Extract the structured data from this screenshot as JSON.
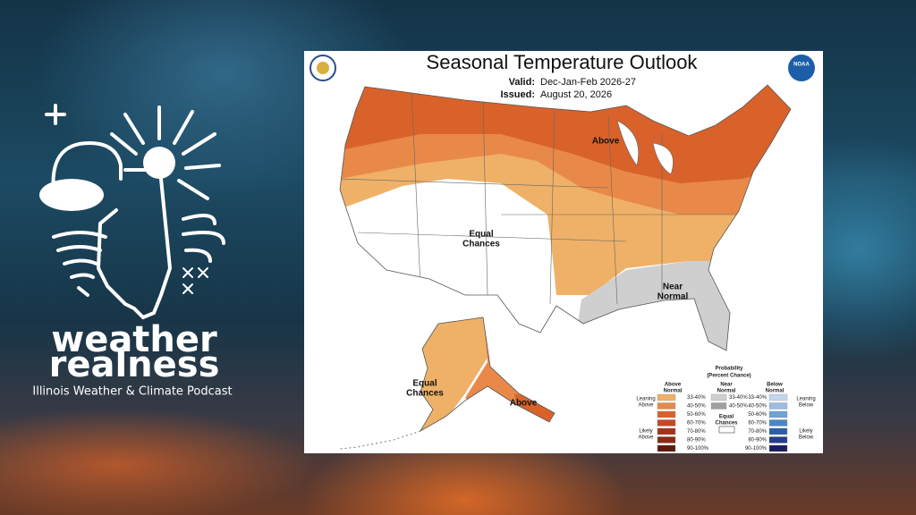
{
  "logo": {
    "line1": "weather",
    "line2": "realness",
    "subtitle": "Illinois Weather & Climate Podcast"
  },
  "outlook": {
    "title": "Seasonal Temperature Outlook",
    "valid_label": "Valid:",
    "valid": "Dec-Jan-Feb 2026-27",
    "issued_label": "Issued:",
    "issued": "August 20, 2026",
    "agency_badge": "NOAA",
    "regions": [
      {
        "lines": [
          "Above"
        ]
      },
      {
        "lines": [
          "Equal",
          "Chances"
        ]
      },
      {
        "lines": [
          "Near",
          "Normal"
        ]
      },
      {
        "lines": [
          "Equal",
          "Chances"
        ]
      },
      {
        "lines": [
          "Above"
        ]
      }
    ],
    "legend": {
      "title": [
        "Probability",
        "(Percent Chance)"
      ],
      "columns": [
        {
          "heading": [
            "Above",
            "Normal"
          ],
          "bins": [
            {
              "range": "33-40%",
              "color": "#efb167"
            },
            {
              "range": "40-50%",
              "color": "#e8894a"
            },
            {
              "range": "50-60%",
              "color": "#d9622b"
            },
            {
              "range": "60-70%",
              "color": "#c8452a"
            },
            {
              "range": "70-80%",
              "color": "#a8311e"
            },
            {
              "range": "80-90%",
              "color": "#8a2a14"
            },
            {
              "range": "90-100%",
              "color": "#5e1a0a"
            }
          ]
        },
        {
          "heading": [
            "Near",
            "Normal"
          ],
          "bins": [
            {
              "range": "33-40%",
              "color": "#d0d0d0"
            },
            {
              "range": "40-50%",
              "color": "#a0a0a0"
            }
          ]
        },
        {
          "heading": [
            "Below",
            "Normal"
          ],
          "bins": [
            {
              "range": "33-40%",
              "color": "#c3d6ee"
            },
            {
              "range": "40-50%",
              "color": "#99bde0"
            },
            {
              "range": "50-60%",
              "color": "#6fa3d6"
            },
            {
              "range": "60-70%",
              "color": "#4b86c6"
            },
            {
              "range": "70-80%",
              "color": "#2e5fa6"
            },
            {
              "range": "80-90%",
              "color": "#263e8c"
            },
            {
              "range": "90-100%",
              "color": "#1c1d5e"
            }
          ]
        }
      ],
      "left_rows": [
        [
          "Leaning",
          "Above"
        ],
        [
          "Likely",
          "Above"
        ]
      ],
      "right_rows": [
        [
          "Leaning",
          "Below"
        ],
        [
          "Likely",
          "Below"
        ]
      ],
      "equal_chances": [
        "Equal",
        "Chances"
      ]
    }
  }
}
